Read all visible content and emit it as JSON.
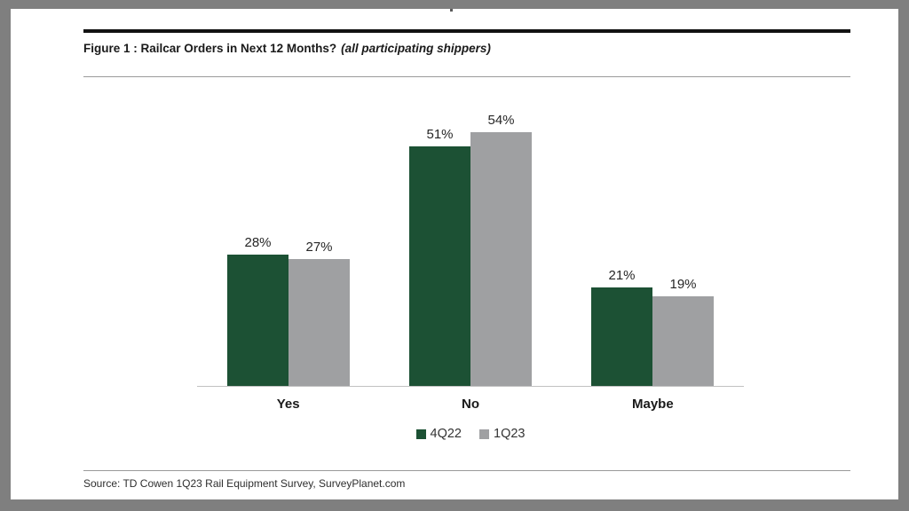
{
  "window": {
    "surround_color": "#7f7f7f",
    "page_color": "#ffffff"
  },
  "figure": {
    "title_main": "Figure 1 : Railcar Orders in Next 12 Months?",
    "title_note": "(all participating shippers)",
    "source": "Source: TD Cowen 1Q23 Rail Equipment Survey, SurveyPlanet.com"
  },
  "chart_data": {
    "type": "bar",
    "title": "Figure 1 : Railcar Orders in Next 12 Months? (all participating shippers)",
    "categories": [
      "Yes",
      "No",
      "Maybe"
    ],
    "series": [
      {
        "name": "4Q22",
        "color": "#1c5134",
        "values": [
          28,
          51,
          21
        ]
      },
      {
        "name": "1Q23",
        "color": "#9fa0a2",
        "values": [
          27,
          54,
          19
        ]
      }
    ],
    "data_labels": [
      [
        "28%",
        "51%",
        "21%"
      ],
      [
        "27%",
        "54%",
        "19%"
      ]
    ],
    "xlabel": "",
    "ylabel": "",
    "ylim": [
      0,
      60
    ],
    "grid": false,
    "axis_line_color": "#c2c2c2",
    "legend_position": "bottom-center",
    "data_label_format": "percent"
  }
}
